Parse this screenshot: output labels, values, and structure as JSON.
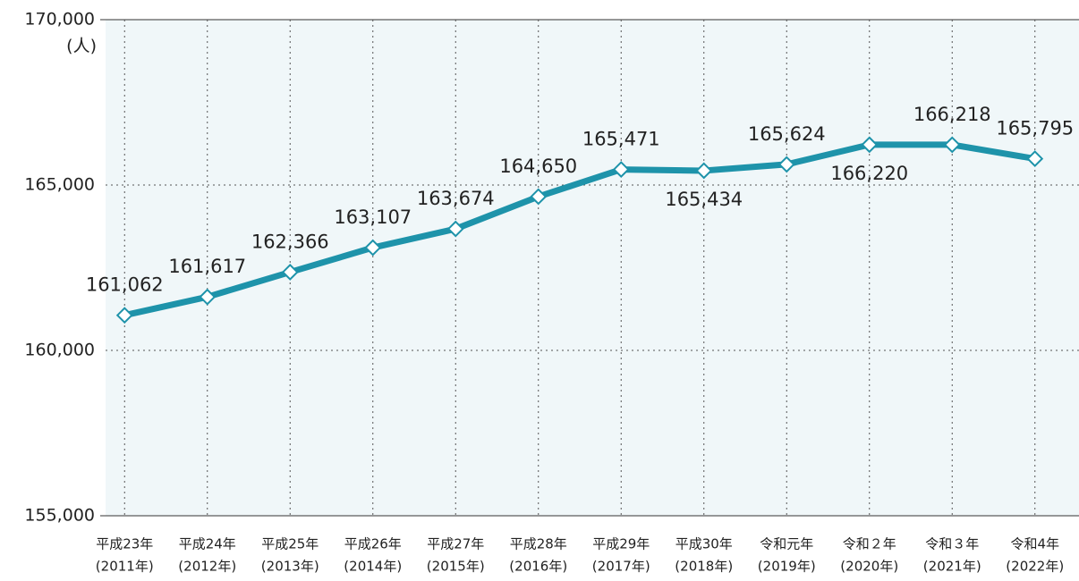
{
  "chart_data": {
    "type": "line",
    "y_unit": "(人)",
    "categories": [
      [
        "平成23年",
        "(2011年)"
      ],
      [
        "平成24年",
        "(2012年)"
      ],
      [
        "平成25年",
        "(2013年)"
      ],
      [
        "平成26年",
        "(2014年)"
      ],
      [
        "平成27年",
        "(2015年)"
      ],
      [
        "平成28年",
        "(2016年)"
      ],
      [
        "平成29年",
        "(2017年)"
      ],
      [
        "平成30年",
        "(2018年)"
      ],
      [
        "令和元年",
        "(2019年)"
      ],
      [
        "令和２年",
        "(2020年)"
      ],
      [
        "令和３年",
        "(2021年)"
      ],
      [
        "令和4年",
        "(2022年)"
      ]
    ],
    "series": [
      {
        "color": "#1e93aa",
        "values": [
          161062,
          161617,
          162366,
          163107,
          163674,
          164650,
          165471,
          165434,
          165624,
          166220,
          166218,
          165795
        ],
        "value_labels": [
          "161,062",
          "161,617",
          "162,366",
          "163,107",
          "163,674",
          "164,650",
          "165,471",
          "165,434",
          "165,624",
          "166,220",
          "166,218",
          "165,795"
        ]
      }
    ],
    "ylim": [
      155000,
      170000
    ],
    "yticks": [
      {
        "value": 155000,
        "label": "155,000"
      },
      {
        "value": 160000,
        "label": "160,000"
      },
      {
        "value": 165000,
        "label": "165,000"
      },
      {
        "value": 170000,
        "label": "170,000"
      }
    ],
    "grid": true
  }
}
